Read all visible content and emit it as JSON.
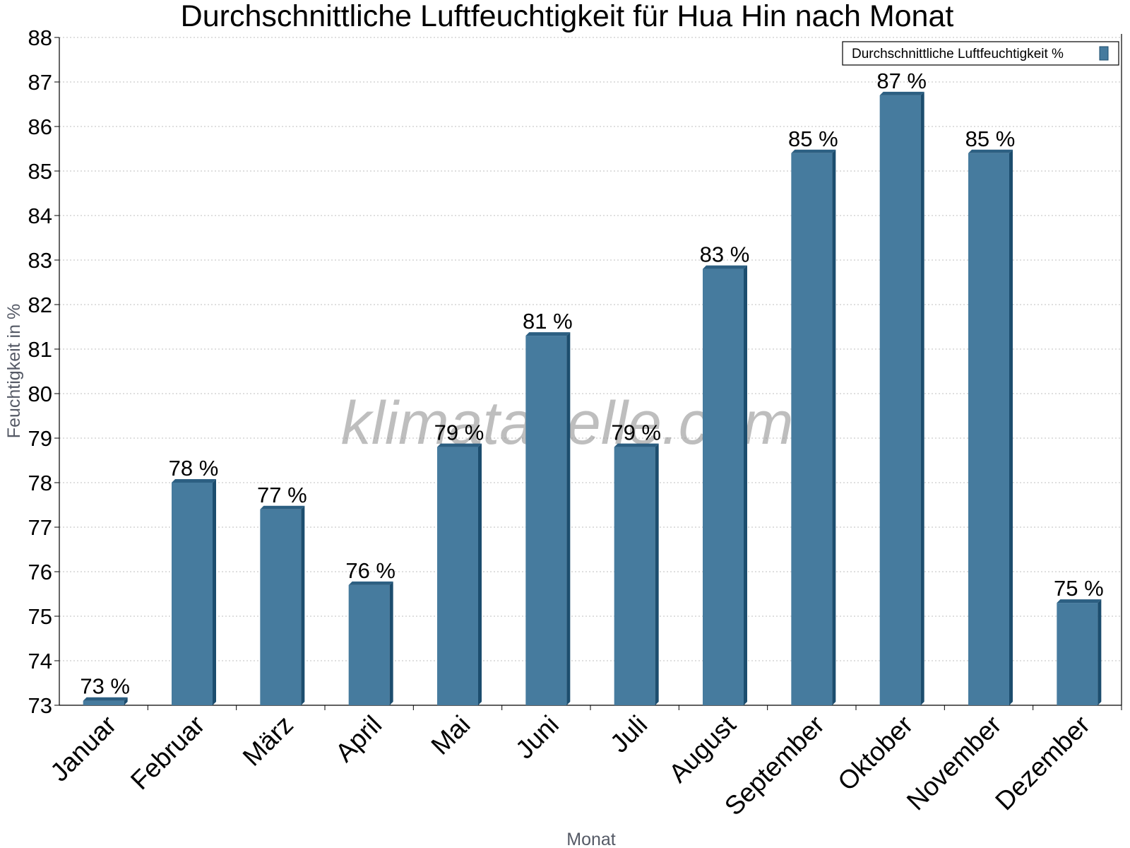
{
  "chart_data": {
    "type": "bar",
    "title": "Durchschnittliche Luftfeuchtigkeit für Hua Hin nach Monat",
    "xlabel": "Monat",
    "ylabel": "Feuchtigkeit in %",
    "ylim": [
      73,
      88
    ],
    "yticks": [
      "73",
      "74",
      "75",
      "76",
      "77",
      "78",
      "79",
      "80",
      "81",
      "82",
      "83",
      "84",
      "85",
      "86",
      "87",
      "88"
    ],
    "categories": [
      "Januar",
      "Februar",
      "März",
      "April",
      "Mai",
      "Juni",
      "Juli",
      "August",
      "September",
      "Oktober",
      "November",
      "Dezember"
    ],
    "series": [
      {
        "name": "Durchschnittliche Luftfeuchtigkeit %",
        "values": [
          73.1,
          78.0,
          77.4,
          75.7,
          78.8,
          81.3,
          78.8,
          82.8,
          85.4,
          86.7,
          85.4,
          75.3
        ],
        "labels": [
          "73 %",
          "78 %",
          "77 %",
          "76 %",
          "79 %",
          "81 %",
          "79 %",
          "83 %",
          "85 %",
          "87 %",
          "85 %",
          "75 %"
        ]
      }
    ],
    "grid": true,
    "legend_position": "top-right",
    "colors": {
      "bar_front": "#467b9e",
      "bar_side": "#1c4d6e",
      "bar_top": "#2c5f82"
    }
  },
  "watermark": "klimatabelle.com"
}
